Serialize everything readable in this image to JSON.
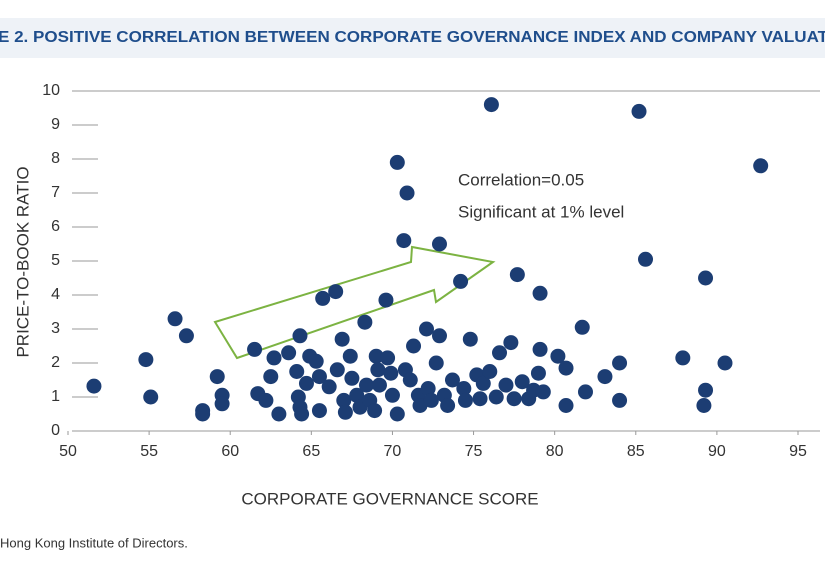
{
  "chart_data": {
    "type": "scatter",
    "title": "E 2. POSITIVE CORRELATION BETWEEN CORPORATE GOVERNANCE INDEX AND COMPANY VALUAT",
    "x_label": "CORPORATE GOVERNANCE SCORE",
    "y_label": "PRICE-TO-BOOK RATIO",
    "annotations": [
      "Correlation=0.05",
      "Significant at 1% level"
    ],
    "source": "Hong Kong Institute of Directors.",
    "color": "#1c3d73",
    "xlim": [
      50,
      95
    ],
    "ylim": [
      0,
      10
    ],
    "xticks": [
      50,
      55,
      60,
      65,
      70,
      75,
      80,
      85,
      90,
      95
    ],
    "yticks": [
      0,
      1,
      2,
      3,
      4,
      5,
      6,
      7,
      8,
      9,
      10
    ],
    "x": [
      51.6,
      54.8,
      55.1,
      56.6,
      57.3,
      58.3,
      58.3,
      59.2,
      59.5,
      59.5,
      61.5,
      61.7,
      62.2,
      62.5,
      62.7,
      63.0,
      63.6,
      64.3,
      64.1,
      64.2,
      64.3,
      64.4,
      64.7,
      64.9,
      65.3,
      65.5,
      65.7,
      66.5,
      65.5,
      66.1,
      66.6,
      66.9,
      67.0,
      67.1,
      67.4,
      67.5,
      67.8,
      68.0,
      68.3,
      68.4,
      68.6,
      68.9,
      69.0,
      69.1,
      69.2,
      69.6,
      69.7,
      69.9,
      70.0,
      70.3,
      70.3,
      70.7,
      70.8,
      70.9,
      71.1,
      71.3,
      71.6,
      71.7,
      72.1,
      72.2,
      72.4,
      72.7,
      72.9,
      72.9,
      73.2,
      73.4,
      73.7,
      74.2,
      74.4,
      74.5,
      74.8,
      75.2,
      75.4,
      75.6,
      76.0,
      76.1,
      76.4,
      76.6,
      77.0,
      77.3,
      77.5,
      77.7,
      78.0,
      78.4,
      78.7,
      79.0,
      79.1,
      79.1,
      79.3,
      80.2,
      80.7,
      80.7,
      81.7,
      81.9,
      83.1,
      84.0,
      84.0,
      85.2,
      85.6,
      87.9,
      89.2,
      89.3,
      89.3,
      90.5,
      92.7
    ],
    "y": [
      1.32,
      2.1,
      1.0,
      3.3,
      2.8,
      0.6,
      0.5,
      1.6,
      1.05,
      0.8,
      2.4,
      1.1,
      0.9,
      1.6,
      2.15,
      0.5,
      2.3,
      2.8,
      1.75,
      1.0,
      0.7,
      0.5,
      1.4,
      2.2,
      2.05,
      0.6,
      3.9,
      4.1,
      1.6,
      1.3,
      1.8,
      2.7,
      0.9,
      0.55,
      2.2,
      1.55,
      1.05,
      0.7,
      3.2,
      1.35,
      0.9,
      0.6,
      2.2,
      1.8,
      1.35,
      3.85,
      2.15,
      1.7,
      1.05,
      7.9,
      0.5,
      5.6,
      1.8,
      7.0,
      1.5,
      2.5,
      1.05,
      0.75,
      3.0,
      1.25,
      0.9,
      2.0,
      2.8,
      5.5,
      1.05,
      0.75,
      1.5,
      4.4,
      1.25,
      0.9,
      2.7,
      1.65,
      0.95,
      1.4,
      1.75,
      9.6,
      1.0,
      2.3,
      1.35,
      2.6,
      0.95,
      4.6,
      1.45,
      0.95,
      1.2,
      1.7,
      4.05,
      2.4,
      1.15,
      2.2,
      0.75,
      1.85,
      3.05,
      1.15,
      1.6,
      2.0,
      0.9,
      9.4,
      5.05,
      2.15,
      0.75,
      1.2,
      4.5,
      2.0,
      7.8
    ]
  }
}
